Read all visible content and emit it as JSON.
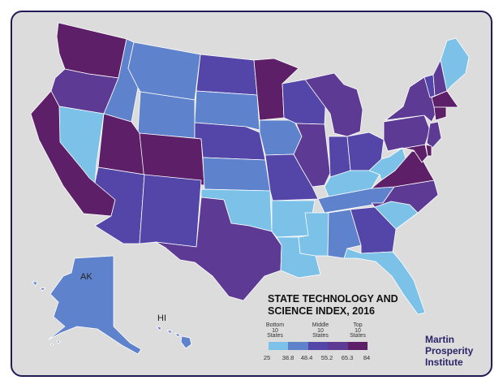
{
  "map": {
    "title_line1": "STATE TECHNOLOGY AND",
    "title_line2": "SCIENCE INDEX, 2016",
    "labels": {
      "alaska": "AK",
      "hawaii": "HI"
    },
    "colors": {
      "tier1": "#7cc1e8",
      "tier2": "#5f82cc",
      "tier3": "#5446a8",
      "tier4": "#5d3a93",
      "tier5": "#5c1f68",
      "background": "#dcdcdc",
      "border": "#1f1b55"
    },
    "states": [
      {
        "id": "WA",
        "tier": "tier5"
      },
      {
        "id": "OR",
        "tier": "tier4"
      },
      {
        "id": "CA",
        "tier": "tier5"
      },
      {
        "id": "NV",
        "tier": "tier1"
      },
      {
        "id": "ID",
        "tier": "tier2"
      },
      {
        "id": "MT",
        "tier": "tier2"
      },
      {
        "id": "WY",
        "tier": "tier2"
      },
      {
        "id": "UT",
        "tier": "tier5"
      },
      {
        "id": "CO",
        "tier": "tier5"
      },
      {
        "id": "AZ",
        "tier": "tier3"
      },
      {
        "id": "NM",
        "tier": "tier3"
      },
      {
        "id": "ND",
        "tier": "tier3"
      },
      {
        "id": "SD",
        "tier": "tier2"
      },
      {
        "id": "NE",
        "tier": "tier3"
      },
      {
        "id": "KS",
        "tier": "tier2"
      },
      {
        "id": "OK",
        "tier": "tier1"
      },
      {
        "id": "TX",
        "tier": "tier4"
      },
      {
        "id": "MN",
        "tier": "tier5"
      },
      {
        "id": "IA",
        "tier": "tier2"
      },
      {
        "id": "MO",
        "tier": "tier3"
      },
      {
        "id": "AR",
        "tier": "tier1"
      },
      {
        "id": "LA",
        "tier": "tier1"
      },
      {
        "id": "WI",
        "tier": "tier3"
      },
      {
        "id": "IL",
        "tier": "tier4"
      },
      {
        "id": "MS",
        "tier": "tier1"
      },
      {
        "id": "MI",
        "tier": "tier4"
      },
      {
        "id": "IN",
        "tier": "tier3"
      },
      {
        "id": "KY",
        "tier": "tier1"
      },
      {
        "id": "TN",
        "tier": "tier2"
      },
      {
        "id": "AL",
        "tier": "tier2"
      },
      {
        "id": "OH",
        "tier": "tier3"
      },
      {
        "id": "WV",
        "tier": "tier1"
      },
      {
        "id": "GA",
        "tier": "tier3"
      },
      {
        "id": "FL",
        "tier": "tier1"
      },
      {
        "id": "SC",
        "tier": "tier1"
      },
      {
        "id": "NC",
        "tier": "tier4"
      },
      {
        "id": "VA",
        "tier": "tier5"
      },
      {
        "id": "PA",
        "tier": "tier4"
      },
      {
        "id": "NY",
        "tier": "tier4"
      },
      {
        "id": "ME",
        "tier": "tier1"
      },
      {
        "id": "VT",
        "tier": "tier3"
      },
      {
        "id": "NH",
        "tier": "tier4"
      },
      {
        "id": "MA",
        "tier": "tier5"
      },
      {
        "id": "CT",
        "tier": "tier5"
      },
      {
        "id": "NJ",
        "tier": "tier4"
      },
      {
        "id": "DE",
        "tier": "tier5"
      },
      {
        "id": "MD",
        "tier": "tier5"
      },
      {
        "id": "AK",
        "tier": "tier2"
      },
      {
        "id": "HI",
        "tier": "tier2"
      }
    ]
  },
  "legend": {
    "bottom": [
      "Bottom",
      "10",
      "States"
    ],
    "middle": [
      "Middle",
      "10",
      "States"
    ],
    "top": [
      "Top",
      "10",
      "States"
    ],
    "ticks": [
      "25",
      "38.8",
      "48.4",
      "55.2",
      "65.3",
      "84"
    ]
  },
  "brand": {
    "line1": "Martin",
    "line2": "Prosperity",
    "line3": "Institute"
  }
}
